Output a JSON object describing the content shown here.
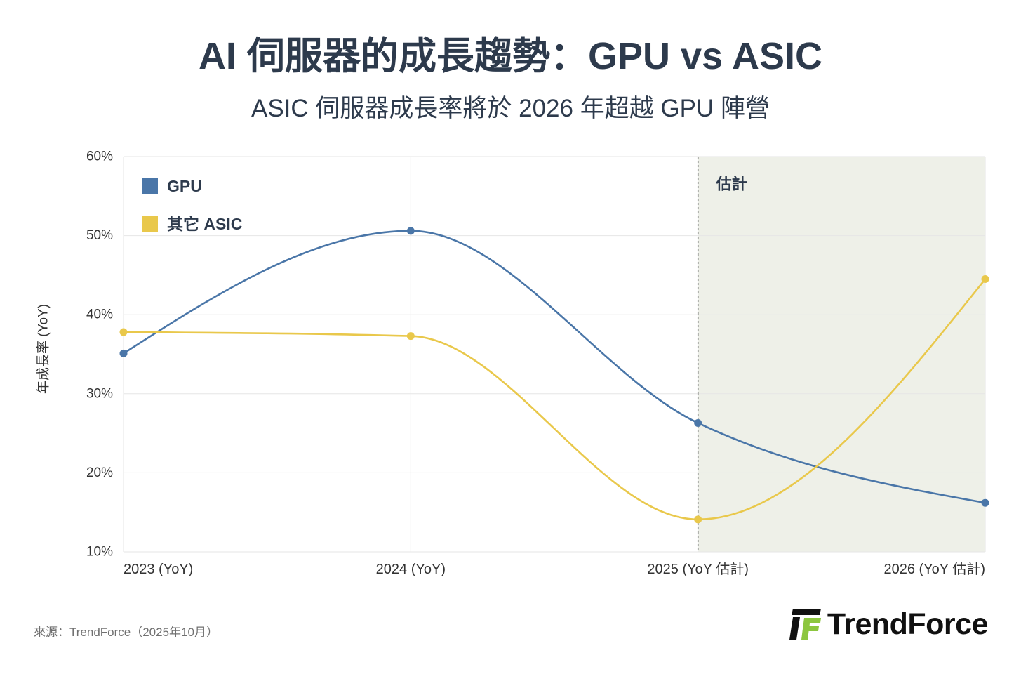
{
  "chart_data": {
    "type": "line",
    "title": "AI 伺服器的成長趨勢：GPU vs ASIC",
    "subtitle": "ASIC 伺服器成長率將於 2026 年超越 GPU 陣營",
    "xlabel": "",
    "ylabel": "年成長率 (YoY)",
    "categories": [
      "2023 (YoY)",
      "2024 (YoY)",
      "2025 (YoY 估計)",
      "2026 (YoY 估計)"
    ],
    "series": [
      {
        "name": "GPU",
        "values": [
          35.1,
          50.6,
          26.3,
          16.2
        ],
        "color": "#4a76a8"
      },
      {
        "name": "其它 ASIC",
        "values": [
          37.8,
          37.3,
          14.1,
          44.5
        ],
        "color": "#e9c84b"
      }
    ],
    "ylim": [
      10,
      60
    ],
    "yticks": [
      10,
      20,
      30,
      40,
      50,
      60
    ],
    "ytick_labels": [
      "10%",
      "20%",
      "30%",
      "40%",
      "50%",
      "60%"
    ],
    "grid": true,
    "legend": "top-left",
    "curve": "smooth",
    "markers": true,
    "estimate_region": {
      "start_index": 2,
      "label": "估計",
      "shade_color": "#eef0e8",
      "divider": "dashed"
    }
  },
  "source": "來源：TrendForce（2025年10月）",
  "logo": {
    "text": "TrendForce",
    "colors": {
      "mark": "#111111",
      "accent": "#8cc63f"
    }
  },
  "colors": {
    "heading": "#2d3a4c",
    "grid": "#e6e6e6",
    "divider": "#4d4d4d",
    "axis_text": "#333333",
    "source_text": "#707070",
    "background": "#ffffff"
  }
}
